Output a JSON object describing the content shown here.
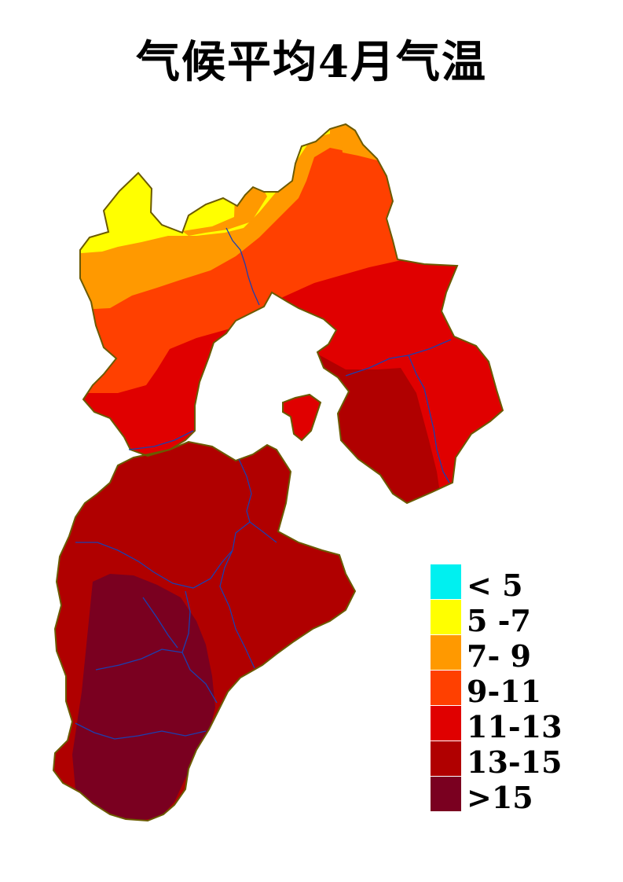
{
  "title": "气候平均4月气温",
  "colors": {
    "boundary": "#6b5a00",
    "county_line": "#1c3fb0",
    "background": "#ffffff"
  },
  "legend": {
    "items": [
      {
        "label": "< 5",
        "color": "#00f0f0"
      },
      {
        "label": "5 -7",
        "color": "#ffff00"
      },
      {
        "label": "7- 9",
        "color": "#ff9900"
      },
      {
        "label": "9-11",
        "color": "#ff4000"
      },
      {
        "label": "11-13",
        "color": "#e00000"
      },
      {
        "label": "13-15",
        "color": "#b00000"
      },
      {
        "label": ">15",
        "color": "#7a0020"
      }
    ]
  }
}
